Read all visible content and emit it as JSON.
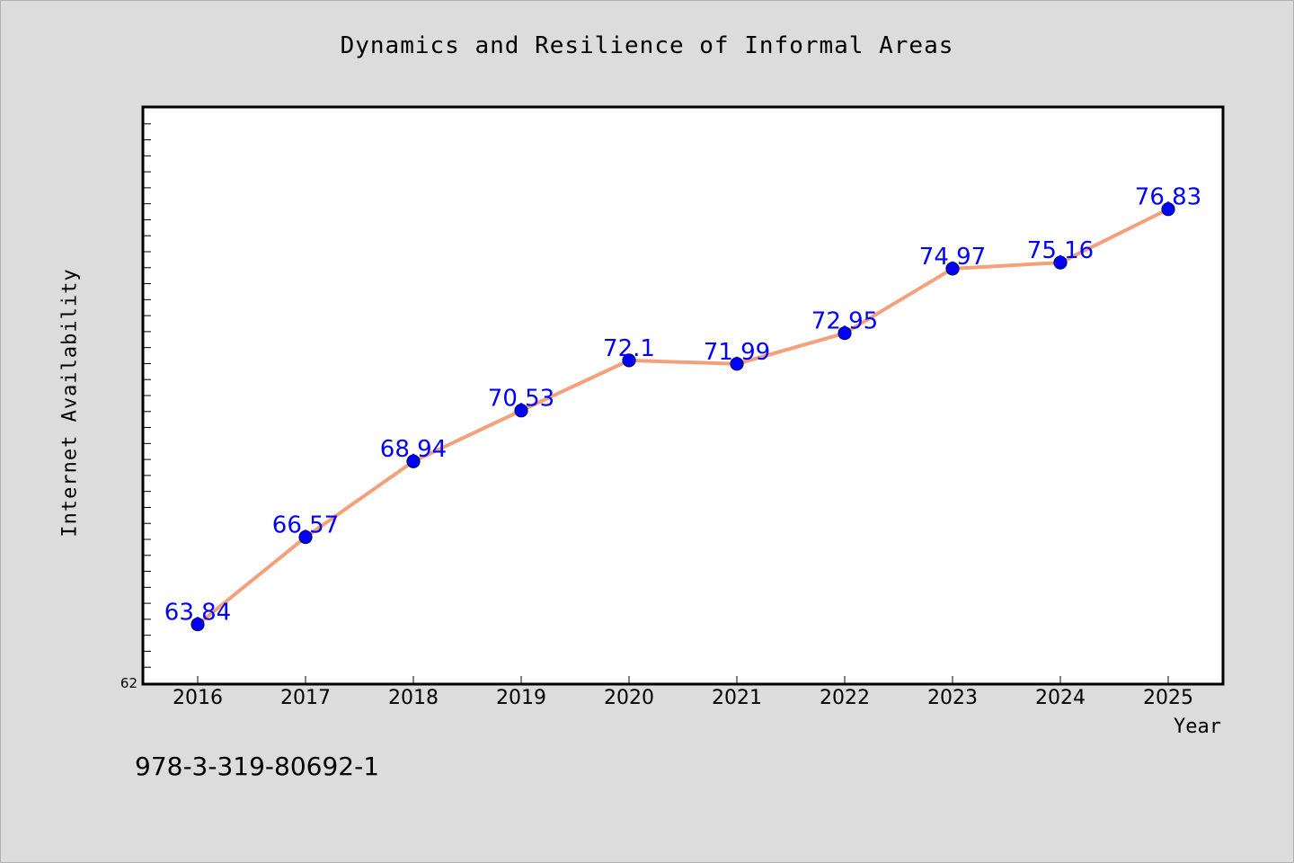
{
  "chart_data": {
    "type": "line",
    "title": "Dynamics and Resilience of Informal Areas",
    "xlabel": "Year",
    "ylabel": "Internet Availability",
    "categories": [
      "2016",
      "2017",
      "2018",
      "2019",
      "2020",
      "2021",
      "2022",
      "2023",
      "2024",
      "2025"
    ],
    "values": [
      63.84,
      66.57,
      68.94,
      70.53,
      72.1,
      71.99,
      72.95,
      74.97,
      75.16,
      76.83
    ],
    "data_labels": [
      "63.84",
      "66.57",
      "68.94",
      "70.53",
      "72.1",
      "71.99",
      "72.95",
      "74.97",
      "75.16",
      "76.83"
    ],
    "ylim": [
      62,
      80
    ],
    "y_tick_labels": [
      "62"
    ],
    "grid": false,
    "legend": "none",
    "colors": {
      "line": "#f4a07a",
      "marker": "#0000ff",
      "marker_edge": "#000066",
      "data_label": "#0000ff",
      "background": "#dcdcdc",
      "plot_background": "#ffffff"
    }
  },
  "footer": {
    "code": "978-3-319-80692-1"
  }
}
